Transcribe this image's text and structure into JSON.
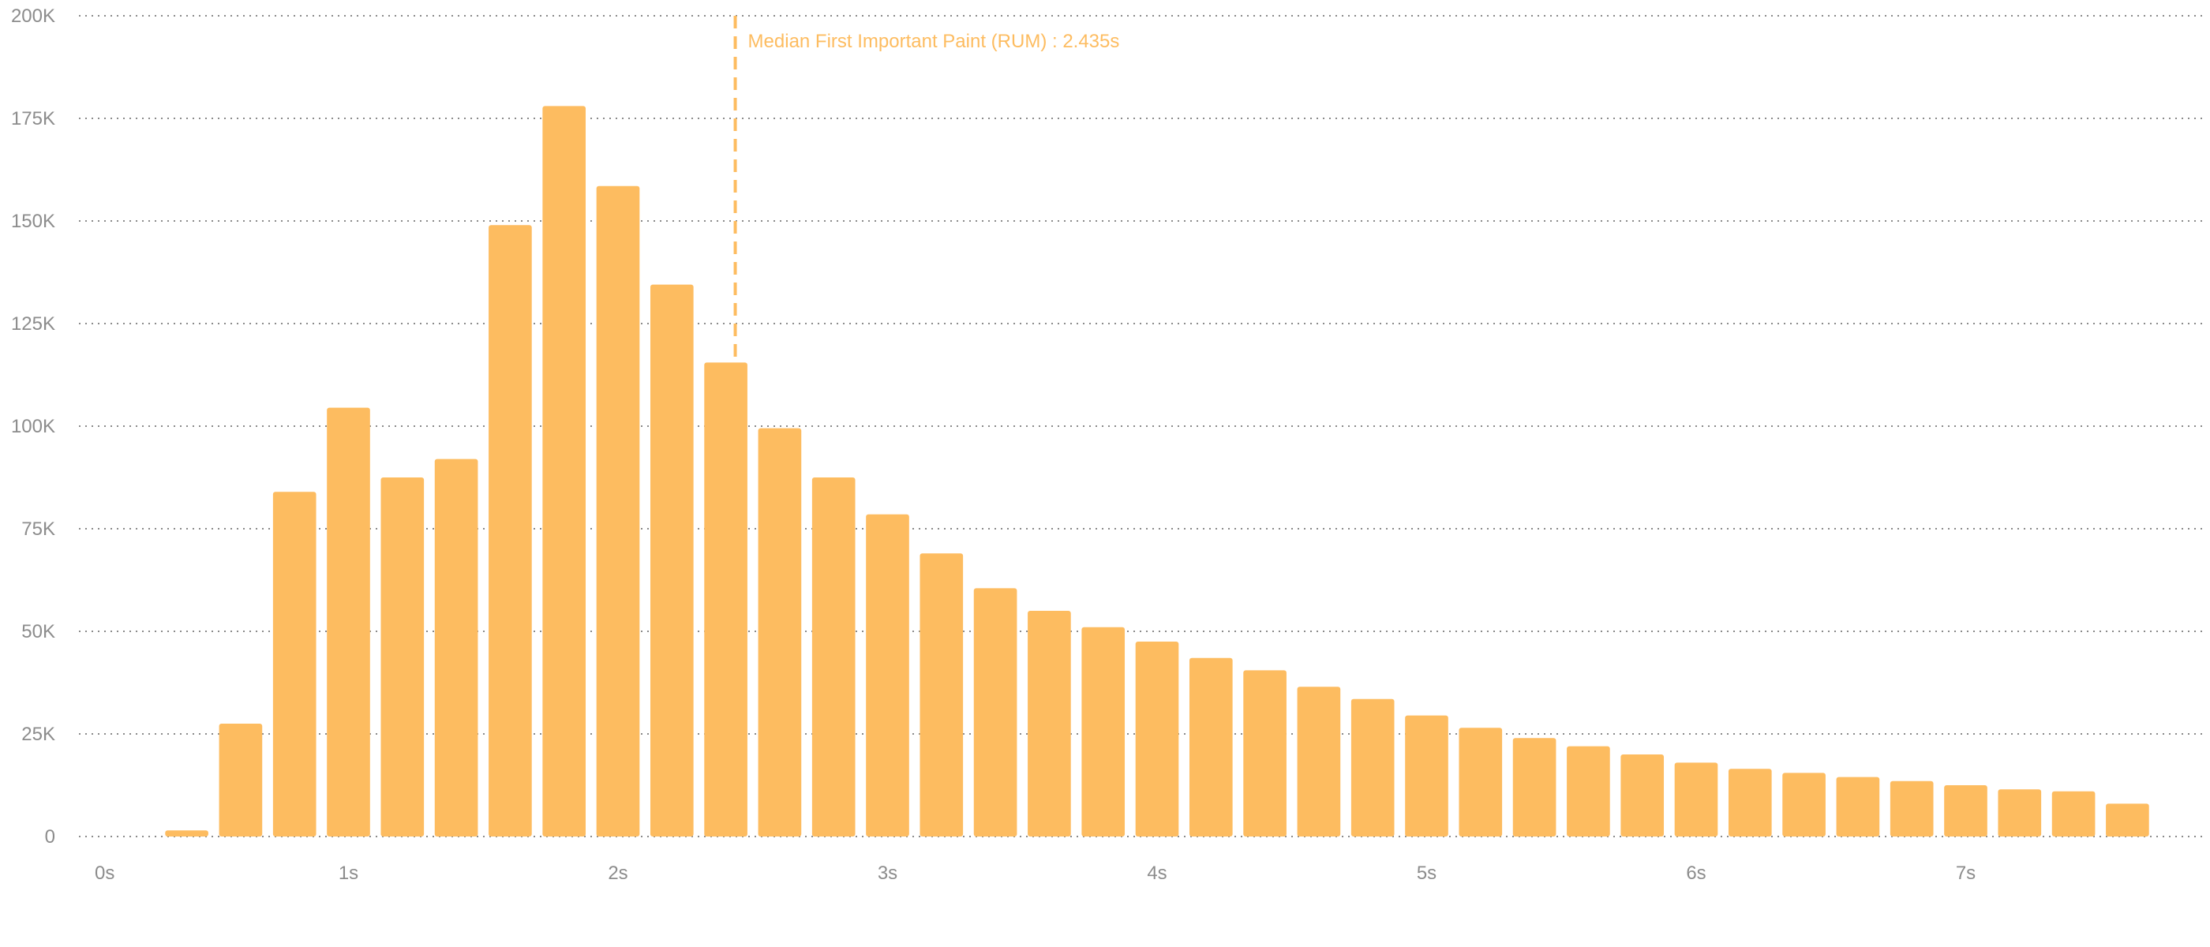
{
  "chart_data": {
    "type": "bar",
    "title": "",
    "xlabel": "",
    "ylabel": "",
    "ylim": [
      0,
      200000
    ],
    "xlim": [
      0,
      7.75
    ],
    "grid": true,
    "bar_width_s": 0.16,
    "colors": {
      "bar": "#fdbc60",
      "grid": "#8a8a8a",
      "tick_text": "#8c8c8c",
      "annotation": "#fdbc60"
    },
    "y_ticks": [
      {
        "value": 0,
        "label": "0"
      },
      {
        "value": 25000,
        "label": "25K"
      },
      {
        "value": 50000,
        "label": "50K"
      },
      {
        "value": 75000,
        "label": "75K"
      },
      {
        "value": 100000,
        "label": "100K"
      },
      {
        "value": 125000,
        "label": "125K"
      },
      {
        "value": 150000,
        "label": "150K"
      },
      {
        "value": 175000,
        "label": "175K"
      },
      {
        "value": 200000,
        "label": "200K"
      }
    ],
    "x_ticks": [
      {
        "value": 0,
        "label": "0s"
      },
      {
        "value": 1,
        "label": "1s"
      },
      {
        "value": 2,
        "label": "2s"
      },
      {
        "value": 3,
        "label": "3s"
      },
      {
        "value": 4,
        "label": "4s"
      },
      {
        "value": 5,
        "label": "5s"
      },
      {
        "value": 6,
        "label": "6s"
      },
      {
        "value": 7,
        "label": "7s"
      }
    ],
    "x": [
      0.4,
      0.6,
      0.8,
      1.0,
      1.2,
      1.4,
      1.6,
      1.8,
      2.0,
      2.2,
      2.4,
      2.6,
      2.8,
      3.0,
      3.2,
      3.4,
      3.6,
      3.8,
      4.0,
      4.2,
      4.4,
      4.6,
      4.8,
      5.0,
      5.2,
      5.4,
      5.6,
      5.8,
      6.0,
      6.2,
      6.4,
      6.6,
      6.8,
      7.0,
      7.2,
      7.4,
      7.6
    ],
    "values": [
      1500,
      27500,
      84000,
      104500,
      87500,
      92000,
      149000,
      178000,
      158500,
      134500,
      115500,
      99500,
      87500,
      78500,
      69000,
      60500,
      55000,
      51000,
      47500,
      43500,
      40500,
      36500,
      33500,
      29500,
      26500,
      24000,
      22000,
      20000,
      18000,
      16500,
      15500,
      14500,
      13500,
      12500,
      11500,
      11000,
      8000
    ],
    "annotations": [
      {
        "type": "vline",
        "x": 2.435,
        "label": "Median First Important Paint (RUM) : 2.435s"
      }
    ]
  }
}
